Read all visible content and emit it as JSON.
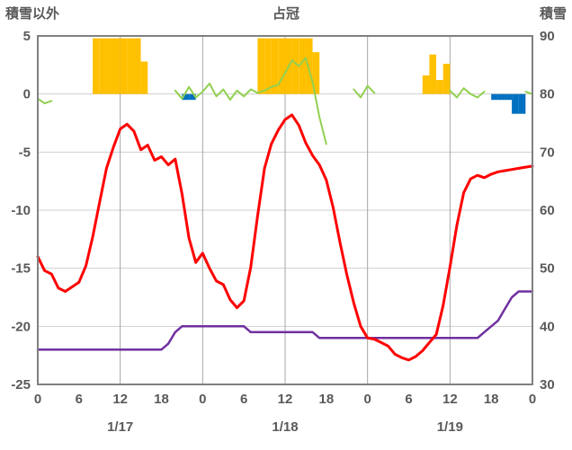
{
  "chart_data": {
    "type": "line",
    "title": "占冠",
    "left_axis": {
      "label": "積雪以外",
      "range": [
        -25,
        5
      ],
      "ticks": [
        5,
        0,
        -5,
        -10,
        -15,
        -20,
        -25
      ]
    },
    "right_axis": {
      "label": "積雪",
      "range": [
        30,
        90
      ],
      "ticks": [
        90,
        80,
        70,
        60,
        50,
        40,
        30
      ]
    },
    "x_axis": {
      "hours_total": 72,
      "tick_interval_hours": 6,
      "grid_interval_hours": 12,
      "tick_labels": [
        "0",
        "6",
        "12",
        "18",
        "0",
        "6",
        "12",
        "18",
        "0",
        "6",
        "12",
        "18",
        "0"
      ],
      "date_labels": [
        "1/17",
        "1/18",
        "1/19"
      ]
    },
    "colors": {
      "grid_h": "#CFCFCF",
      "grid_v": "#A6A6A6",
      "border": "#808080",
      "text": "#595959"
    },
    "series": [
      {
        "name": "orange-bars",
        "type": "bar",
        "axis": "left",
        "color": "#FFC000",
        "values": [
          null,
          null,
          null,
          null,
          null,
          null,
          null,
          null,
          4.8,
          4.8,
          4.8,
          4.8,
          4.8,
          4.8,
          4.8,
          2.8,
          null,
          null,
          null,
          null,
          null,
          null,
          null,
          null,
          null,
          null,
          null,
          null,
          null,
          null,
          null,
          null,
          4.8,
          4.8,
          4.8,
          4.8,
          4.8,
          4.8,
          4.8,
          4.8,
          3.6,
          null,
          null,
          null,
          null,
          null,
          null,
          null,
          null,
          null,
          null,
          null,
          null,
          null,
          null,
          null,
          1.6,
          3.4,
          1.2,
          2.6,
          null,
          null,
          null,
          null,
          null,
          null,
          null,
          null,
          null,
          null,
          null,
          null
        ]
      },
      {
        "name": "blue-bars",
        "type": "bar",
        "axis": "left",
        "color": "#0070C0",
        "values": [
          null,
          null,
          null,
          null,
          null,
          null,
          null,
          null,
          null,
          null,
          null,
          null,
          null,
          null,
          null,
          null,
          null,
          null,
          null,
          null,
          null,
          -0.5,
          -0.5,
          null,
          null,
          null,
          null,
          null,
          null,
          null,
          null,
          null,
          null,
          null,
          null,
          null,
          null,
          null,
          null,
          null,
          null,
          null,
          null,
          null,
          null,
          null,
          null,
          null,
          null,
          null,
          null,
          null,
          null,
          null,
          null,
          null,
          null,
          null,
          null,
          null,
          null,
          null,
          null,
          null,
          null,
          null,
          -0.5,
          -0.5,
          -0.5,
          -1.7,
          -1.7,
          null
        ]
      },
      {
        "name": "green-line",
        "type": "line",
        "axis": "left",
        "color": "#92D050",
        "width": 2,
        "values": [
          -0.4,
          -0.8,
          -0.6,
          null,
          null,
          null,
          null,
          null,
          null,
          null,
          null,
          null,
          null,
          null,
          null,
          null,
          null,
          null,
          null,
          null,
          0.3,
          -0.4,
          0.6,
          -0.3,
          0.2,
          0.9,
          -0.2,
          0.4,
          -0.5,
          0.3,
          -0.2,
          0.4,
          0.1,
          0.3,
          0.6,
          0.8,
          1.8,
          2.9,
          2.4,
          3.1,
          1.0,
          -2.0,
          -4.3,
          null,
          null,
          null,
          0.4,
          -0.3,
          0.7,
          0.1,
          null,
          null,
          null,
          null,
          null,
          null,
          null,
          null,
          null,
          null,
          0.3,
          -0.3,
          0.5,
          0.0,
          -0.3,
          0.2,
          null,
          null,
          null,
          null,
          null,
          0.2,
          0.0
        ]
      },
      {
        "name": "purple-snow-depth-line",
        "type": "line",
        "axis": "right",
        "color": "#7030A0",
        "width": 2.5,
        "values": [
          36,
          36,
          36,
          36,
          36,
          36,
          36,
          36,
          36,
          36,
          36,
          36,
          36,
          36,
          36,
          36,
          36,
          36,
          36,
          37,
          39,
          40,
          40,
          40,
          40,
          40,
          40,
          40,
          40,
          40,
          40,
          39,
          39,
          39,
          39,
          39,
          39,
          39,
          39,
          39,
          39,
          38,
          38,
          38,
          38,
          38,
          38,
          38,
          38,
          38,
          38,
          38,
          38,
          38,
          38,
          38,
          38,
          38,
          38,
          38,
          38,
          38,
          38,
          38,
          38,
          39,
          40,
          41,
          43,
          45,
          46,
          46,
          46
        ]
      },
      {
        "name": "red-temperature-line",
        "type": "line",
        "axis": "left",
        "color": "#FF0000",
        "width": 3,
        "values": [
          -14.0,
          -15.2,
          -15.5,
          -16.7,
          -17.0,
          -16.6,
          -16.2,
          -14.8,
          -12.3,
          -9.3,
          -6.4,
          -4.6,
          -3.0,
          -2.6,
          -3.2,
          -4.8,
          -4.4,
          -5.7,
          -5.4,
          -6.1,
          -5.6,
          -8.6,
          -12.4,
          -14.5,
          -13.7,
          -15.0,
          -16.1,
          -16.4,
          -17.7,
          -18.4,
          -17.8,
          -14.9,
          -10.5,
          -6.4,
          -4.3,
          -3.1,
          -2.2,
          -1.8,
          -2.7,
          -4.2,
          -5.3,
          -6.1,
          -7.4,
          -9.8,
          -12.8,
          -15.6,
          -18.0,
          -20.0,
          -21.0,
          -21.1,
          -21.4,
          -21.7,
          -22.4,
          -22.7,
          -22.9,
          -22.6,
          -22.1,
          -21.4,
          -20.7,
          -18.2,
          -14.9,
          -11.3,
          -8.5,
          -7.3,
          -7.0,
          -7.2,
          -6.9,
          -6.7,
          -6.6,
          -6.5,
          -6.4,
          -6.3,
          -6.2
        ]
      }
    ]
  }
}
